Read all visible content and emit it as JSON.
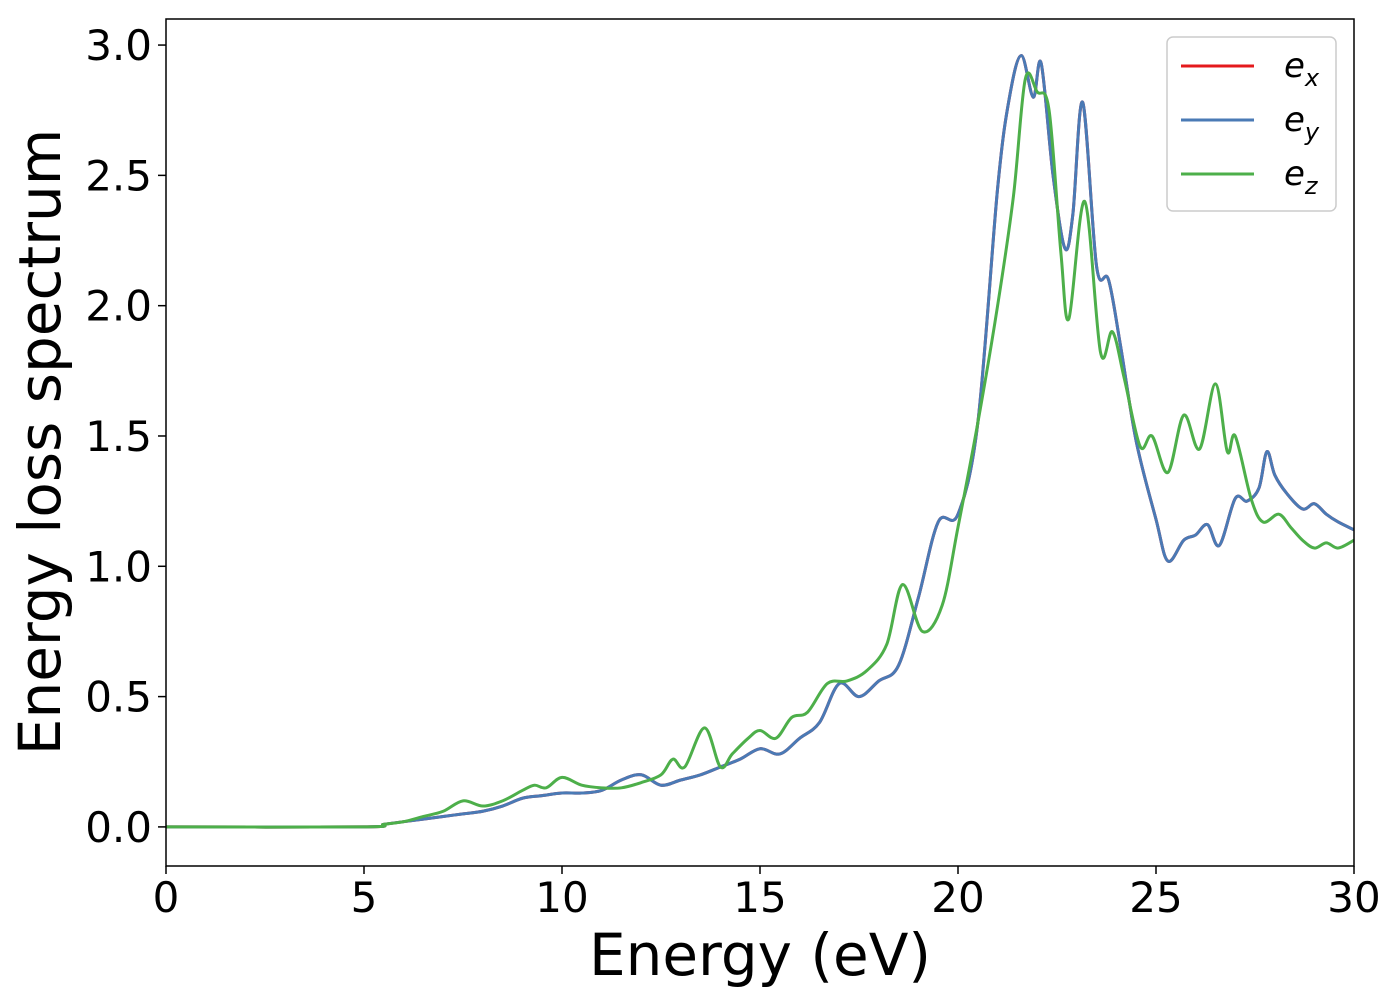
{
  "chart_data": {
    "type": "line",
    "title": "",
    "xlabel": "Energy (eV)",
    "ylabel": "Energy loss spectrum",
    "xlim": [
      0,
      30
    ],
    "ylim": [
      -0.15,
      3.1
    ],
    "xticks": [
      0,
      5,
      10,
      15,
      20,
      25,
      30
    ],
    "xtick_labels": [
      "0",
      "5",
      "10",
      "15",
      "20",
      "25",
      "30"
    ],
    "yticks": [
      0.0,
      0.5,
      1.0,
      1.5,
      2.0,
      2.5,
      3.0
    ],
    "ytick_labels": [
      "0.0",
      "0.5",
      "1.0",
      "1.5",
      "2.0",
      "2.5",
      "3.0"
    ],
    "grid": false,
    "legend_position": "top-right",
    "series": [
      {
        "name": "e_x",
        "label_base": "e",
        "label_sub": "x",
        "color": "#e41a1c",
        "x": [
          0,
          5,
          5.5,
          6,
          6.5,
          7,
          7.5,
          8,
          8.5,
          9,
          9.5,
          10,
          10.5,
          11,
          11.5,
          12,
          12.5,
          13,
          13.5,
          14,
          14.5,
          15,
          15.5,
          16,
          16.5,
          17,
          17.5,
          18,
          18.5,
          19,
          19.5,
          20,
          20.5,
          21,
          21.3,
          21.6,
          21.9,
          22.1,
          22.4,
          22.7,
          22.9,
          23.15,
          23.5,
          23.8,
          24.1,
          24.5,
          25,
          25.3,
          25.7,
          26,
          26.3,
          26.6,
          27,
          27.3,
          27.6,
          27.8,
          28,
          28.3,
          28.7,
          29,
          29.3,
          29.6,
          30
        ],
        "y": [
          0.0,
          0.0,
          0.01,
          0.02,
          0.03,
          0.04,
          0.05,
          0.06,
          0.08,
          0.11,
          0.12,
          0.13,
          0.13,
          0.14,
          0.18,
          0.2,
          0.16,
          0.18,
          0.2,
          0.23,
          0.26,
          0.3,
          0.28,
          0.34,
          0.4,
          0.55,
          0.5,
          0.56,
          0.62,
          0.88,
          1.17,
          1.2,
          1.55,
          2.45,
          2.8,
          2.96,
          2.8,
          2.93,
          2.5,
          2.22,
          2.35,
          2.78,
          2.15,
          2.1,
          1.85,
          1.48,
          1.18,
          1.02,
          1.1,
          1.12,
          1.16,
          1.08,
          1.26,
          1.25,
          1.3,
          1.44,
          1.35,
          1.28,
          1.22,
          1.24,
          1.2,
          1.17,
          1.14
        ]
      },
      {
        "name": "e_y",
        "label_base": "e",
        "label_sub": "y",
        "color": "#4a7ab5",
        "x": [
          0,
          5,
          5.5,
          6,
          6.5,
          7,
          7.5,
          8,
          8.5,
          9,
          9.5,
          10,
          10.5,
          11,
          11.5,
          12,
          12.5,
          13,
          13.5,
          14,
          14.5,
          15,
          15.5,
          16,
          16.5,
          17,
          17.5,
          18,
          18.5,
          19,
          19.5,
          20,
          20.5,
          21,
          21.3,
          21.6,
          21.9,
          22.1,
          22.4,
          22.7,
          22.9,
          23.15,
          23.5,
          23.8,
          24.1,
          24.5,
          25,
          25.3,
          25.7,
          26,
          26.3,
          26.6,
          27,
          27.3,
          27.6,
          27.8,
          28,
          28.3,
          28.7,
          29,
          29.3,
          29.6,
          30
        ],
        "y": [
          0.0,
          0.0,
          0.01,
          0.02,
          0.03,
          0.04,
          0.05,
          0.06,
          0.08,
          0.11,
          0.12,
          0.13,
          0.13,
          0.14,
          0.18,
          0.2,
          0.16,
          0.18,
          0.2,
          0.23,
          0.26,
          0.3,
          0.28,
          0.34,
          0.4,
          0.55,
          0.5,
          0.56,
          0.62,
          0.88,
          1.17,
          1.2,
          1.55,
          2.45,
          2.8,
          2.96,
          2.8,
          2.93,
          2.5,
          2.22,
          2.35,
          2.78,
          2.15,
          2.1,
          1.85,
          1.48,
          1.18,
          1.02,
          1.1,
          1.12,
          1.16,
          1.08,
          1.26,
          1.25,
          1.3,
          1.44,
          1.35,
          1.28,
          1.22,
          1.24,
          1.2,
          1.17,
          1.14
        ]
      },
      {
        "name": "e_z",
        "label_base": "e",
        "label_sub": "z",
        "color": "#4daf4a",
        "x": [
          0,
          5,
          5.5,
          6,
          6.5,
          7,
          7.5,
          8,
          8.5,
          9,
          9.3,
          9.6,
          10,
          10.5,
          11,
          11.5,
          12,
          12.5,
          12.8,
          13.1,
          13.6,
          14,
          14.3,
          14.7,
          15,
          15.4,
          15.8,
          16.2,
          16.7,
          17.2,
          17.7,
          18.2,
          18.6,
          19.1,
          19.6,
          20,
          20.5,
          21,
          21.4,
          21.7,
          22,
          22.3,
          22.6,
          22.8,
          23.2,
          23.6,
          23.9,
          24.2,
          24.6,
          24.9,
          25.3,
          25.7,
          26.1,
          26.5,
          26.8,
          27,
          27.4,
          27.7,
          28.1,
          28.4,
          28.7,
          29,
          29.3,
          29.6,
          30
        ],
        "y": [
          0.0,
          0.0,
          0.01,
          0.02,
          0.04,
          0.06,
          0.1,
          0.08,
          0.1,
          0.14,
          0.16,
          0.15,
          0.19,
          0.16,
          0.15,
          0.15,
          0.17,
          0.2,
          0.26,
          0.23,
          0.38,
          0.23,
          0.28,
          0.34,
          0.37,
          0.34,
          0.42,
          0.44,
          0.55,
          0.56,
          0.6,
          0.7,
          0.93,
          0.75,
          0.85,
          1.15,
          1.55,
          2.0,
          2.42,
          2.87,
          2.82,
          2.75,
          2.2,
          1.95,
          2.4,
          1.82,
          1.9,
          1.72,
          1.46,
          1.5,
          1.36,
          1.58,
          1.45,
          1.7,
          1.44,
          1.5,
          1.26,
          1.17,
          1.2,
          1.15,
          1.1,
          1.07,
          1.09,
          1.07,
          1.1
        ]
      }
    ]
  }
}
